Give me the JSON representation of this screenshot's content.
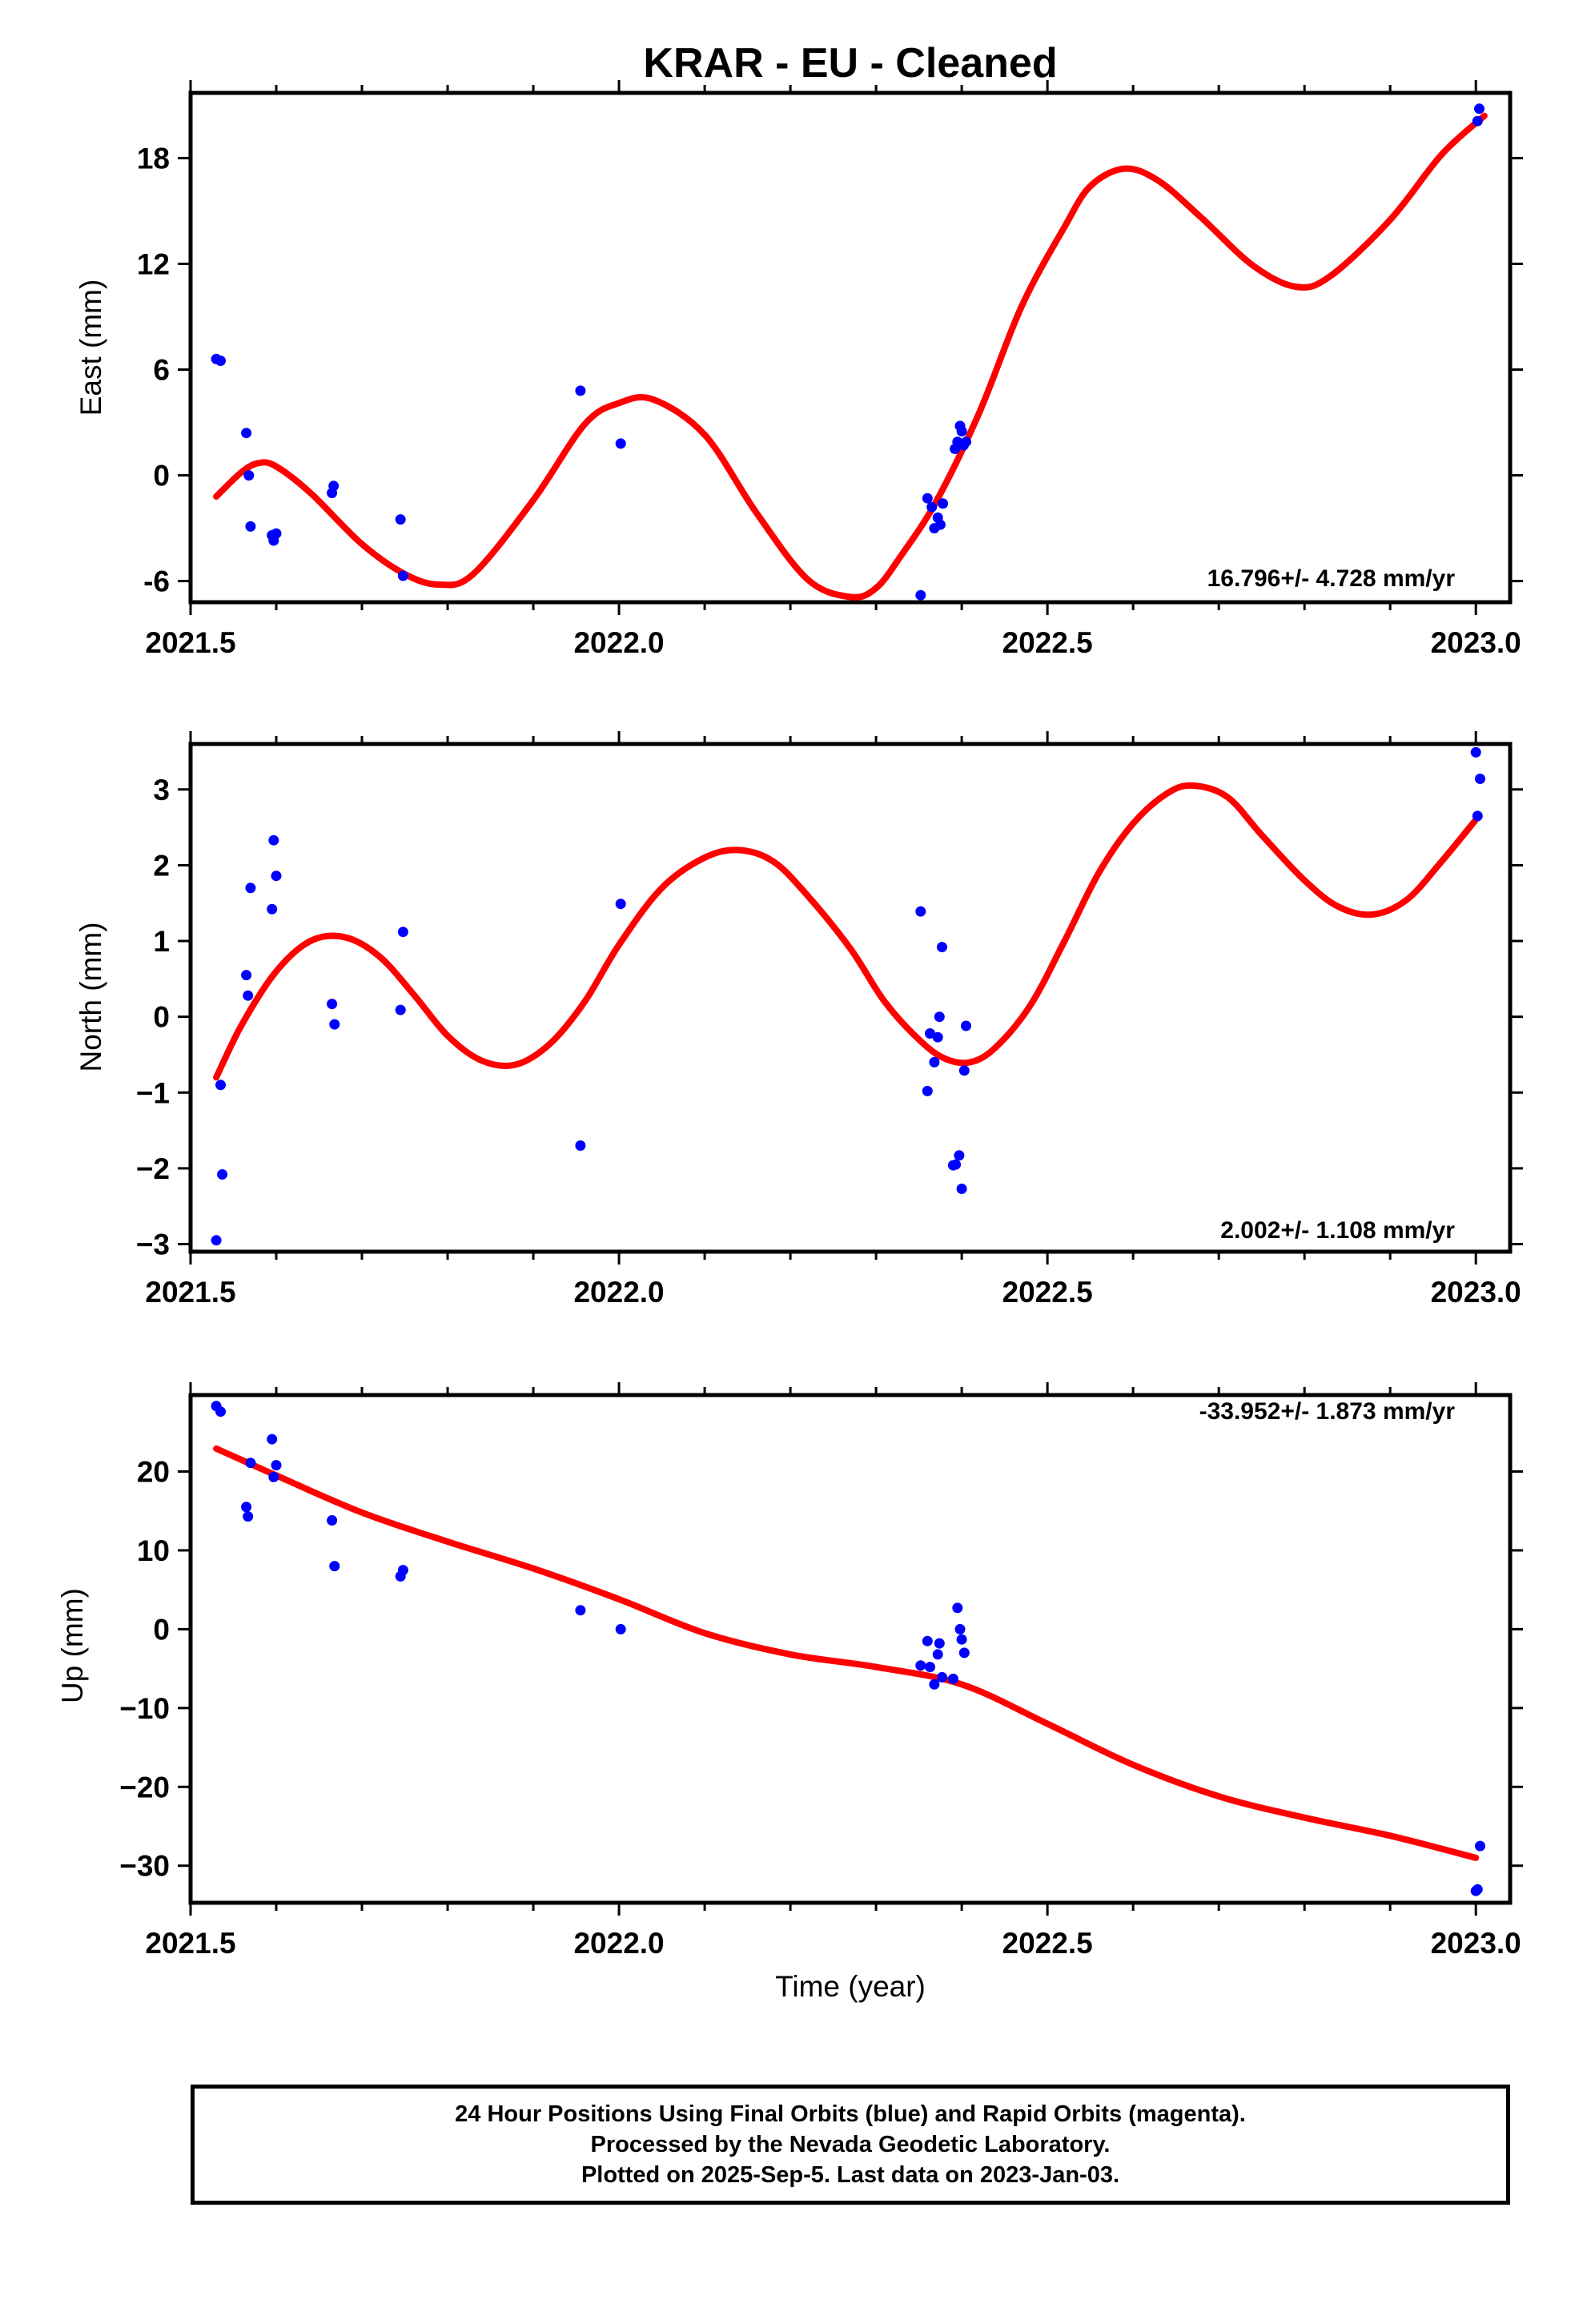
{
  "title": "KRAR  - EU - Cleaned",
  "xlabel": "Time (year)",
  "colors": {
    "final_orbits": "#0000ff",
    "fit_curve": "#ff0000",
    "frame": "#000000"
  },
  "footer": {
    "line1": "24 Hour Positions Using Final Orbits (blue) and Rapid Orbits (magenta).",
    "line2": "Processed by the Nevada Geodetic Laboratory.",
    "line3": "Plotted on 2025-Sep-5. Last data on 2023-Jan-03."
  },
  "chart_data": [
    {
      "type": "scatter",
      "ylabel": "East (mm)",
      "rate": "16.796+/- 4.728 mm/yr",
      "rate_position": "bottom-right",
      "xlim": [
        2021.5,
        2023.04
      ],
      "ylim": [
        -7.2,
        21.7
      ],
      "x_ticks": [
        "2021.5",
        "2022.0",
        "2022.5",
        "2023.0"
      ],
      "y_ticks": [
        "-6",
        "0",
        "6",
        "12",
        "18"
      ],
      "points": [
        [
          2021.53,
          6.6
        ],
        [
          2021.535,
          6.5
        ],
        [
          2021.565,
          2.4
        ],
        [
          2021.568,
          0.0
        ],
        [
          2021.57,
          -2.9
        ],
        [
          2021.595,
          -3.4
        ],
        [
          2021.597,
          -3.7
        ],
        [
          2021.6,
          -3.3
        ],
        [
          2021.665,
          -1.0
        ],
        [
          2021.667,
          -0.6
        ],
        [
          2021.745,
          -2.5
        ],
        [
          2021.748,
          -5.7
        ],
        [
          2021.955,
          4.8
        ],
        [
          2022.002,
          1.8
        ],
        [
          2022.352,
          -6.8
        ],
        [
          2022.36,
          -1.3
        ],
        [
          2022.365,
          -1.8
        ],
        [
          2022.368,
          -3.0
        ],
        [
          2022.372,
          -2.4
        ],
        [
          2022.375,
          -2.8
        ],
        [
          2022.378,
          -1.6
        ],
        [
          2022.392,
          1.5
        ],
        [
          2022.395,
          1.9
        ],
        [
          2022.398,
          2.8
        ],
        [
          2022.4,
          2.5
        ],
        [
          2022.402,
          1.7
        ],
        [
          2022.405,
          1.9
        ],
        [
          2023.002,
          20.1
        ],
        [
          2023.004,
          20.8
        ]
      ],
      "fit": [
        [
          2021.53,
          -1.2
        ],
        [
          2021.56,
          0.2
        ],
        [
          2021.58,
          0.7
        ],
        [
          2021.6,
          0.5
        ],
        [
          2021.64,
          -1.0
        ],
        [
          2021.7,
          -3.9
        ],
        [
          2021.75,
          -5.6
        ],
        [
          2021.79,
          -6.2
        ],
        [
          2021.83,
          -5.6
        ],
        [
          2021.9,
          -1.4
        ],
        [
          2021.96,
          2.9
        ],
        [
          2022.0,
          4.1
        ],
        [
          2022.04,
          4.3
        ],
        [
          2022.1,
          2.3
        ],
        [
          2022.16,
          -2.1
        ],
        [
          2022.22,
          -5.9
        ],
        [
          2022.27,
          -6.9
        ],
        [
          2022.3,
          -6.4
        ],
        [
          2022.33,
          -4.5
        ],
        [
          2022.37,
          -1.5
        ],
        [
          2022.42,
          3.5
        ],
        [
          2022.47,
          9.6
        ],
        [
          2022.52,
          14.1
        ],
        [
          2022.55,
          16.4
        ],
        [
          2022.59,
          17.4
        ],
        [
          2022.63,
          16.7
        ],
        [
          2022.68,
          14.6
        ],
        [
          2022.74,
          11.9
        ],
        [
          2022.79,
          10.7
        ],
        [
          2022.83,
          11.3
        ],
        [
          2022.9,
          14.5
        ],
        [
          2022.96,
          18.2
        ],
        [
          2023.01,
          20.4
        ]
      ]
    },
    {
      "type": "scatter",
      "ylabel": "North (mm)",
      "rate": "2.002+/- 1.108 mm/yr",
      "rate_position": "bottom-right",
      "xlim": [
        2021.5,
        2023.04
      ],
      "ylim": [
        -3.1,
        3.6
      ],
      "x_ticks": [
        "2021.5",
        "2022.0",
        "2022.5",
        "2023.0"
      ],
      "y_ticks": [
        "−3",
        "−2",
        "−1",
        "0",
        "1",
        "2",
        "3"
      ],
      "points": [
        [
          2021.53,
          -2.95
        ],
        [
          2021.535,
          -0.9
        ],
        [
          2021.537,
          -2.08
        ],
        [
          2021.565,
          0.55
        ],
        [
          2021.567,
          0.28
        ],
        [
          2021.57,
          1.7
        ],
        [
          2021.595,
          1.42
        ],
        [
          2021.597,
          2.33
        ],
        [
          2021.6,
          1.86
        ],
        [
          2021.665,
          0.17
        ],
        [
          2021.668,
          -0.1
        ],
        [
          2021.745,
          0.09
        ],
        [
          2021.748,
          1.12
        ],
        [
          2021.955,
          -1.7
        ],
        [
          2022.002,
          1.49
        ],
        [
          2022.352,
          1.39
        ],
        [
          2022.36,
          -0.98
        ],
        [
          2022.363,
          -0.22
        ],
        [
          2022.368,
          -0.6
        ],
        [
          2022.372,
          -0.27
        ],
        [
          2022.374,
          0.0
        ],
        [
          2022.377,
          0.92
        ],
        [
          2022.39,
          -1.96
        ],
        [
          2022.393,
          -1.95
        ],
        [
          2022.397,
          -1.83
        ],
        [
          2022.4,
          -2.27
        ],
        [
          2022.403,
          -0.71
        ],
        [
          2022.405,
          -0.12
        ],
        [
          2023.0,
          3.49
        ],
        [
          2023.002,
          2.65
        ],
        [
          2023.005,
          3.14
        ]
      ],
      "fit": [
        [
          2021.53,
          -0.8
        ],
        [
          2021.56,
          -0.1
        ],
        [
          2021.6,
          0.6
        ],
        [
          2021.64,
          1.0
        ],
        [
          2021.68,
          1.05
        ],
        [
          2021.72,
          0.8
        ],
        [
          2021.76,
          0.3
        ],
        [
          2021.8,
          -0.25
        ],
        [
          2021.84,
          -0.58
        ],
        [
          2021.88,
          -0.63
        ],
        [
          2021.92,
          -0.35
        ],
        [
          2021.96,
          0.2
        ],
        [
          2022.0,
          0.95
        ],
        [
          2022.05,
          1.7
        ],
        [
          2022.1,
          2.1
        ],
        [
          2022.14,
          2.2
        ],
        [
          2022.18,
          2.05
        ],
        [
          2022.22,
          1.6
        ],
        [
          2022.27,
          0.9
        ],
        [
          2022.31,
          0.2
        ],
        [
          2022.35,
          -0.3
        ],
        [
          2022.38,
          -0.55
        ],
        [
          2022.41,
          -0.6
        ],
        [
          2022.44,
          -0.4
        ],
        [
          2022.48,
          0.15
        ],
        [
          2022.52,
          1.0
        ],
        [
          2022.56,
          1.9
        ],
        [
          2022.6,
          2.55
        ],
        [
          2022.64,
          2.95
        ],
        [
          2022.67,
          3.05
        ],
        [
          2022.71,
          2.9
        ],
        [
          2022.75,
          2.4
        ],
        [
          2022.8,
          1.8
        ],
        [
          2022.84,
          1.45
        ],
        [
          2022.88,
          1.35
        ],
        [
          2022.92,
          1.55
        ],
        [
          2022.96,
          2.05
        ],
        [
          2023.0,
          2.6
        ]
      ]
    },
    {
      "type": "scatter",
      "ylabel": "Up (mm)",
      "rate": "-33.952+/- 1.873 mm/yr",
      "rate_position": "top-right",
      "xlim": [
        2021.5,
        2023.04
      ],
      "ylim": [
        -34.7,
        29.7
      ],
      "x_ticks": [
        "2021.5",
        "2022.0",
        "2022.5",
        "2023.0"
      ],
      "y_ticks": [
        "−30",
        "−20",
        "−10",
        "0",
        "10",
        "20"
      ],
      "points": [
        [
          2021.53,
          28.3
        ],
        [
          2021.535,
          27.6
        ],
        [
          2021.565,
          15.5
        ],
        [
          2021.567,
          14.3
        ],
        [
          2021.57,
          21.1
        ],
        [
          2021.595,
          24.1
        ],
        [
          2021.597,
          19.3
        ],
        [
          2021.6,
          20.8
        ],
        [
          2021.665,
          13.8
        ],
        [
          2021.668,
          8.0
        ],
        [
          2021.745,
          6.7
        ],
        [
          2021.748,
          7.5
        ],
        [
          2021.955,
          2.4
        ],
        [
          2022.002,
          0.0
        ],
        [
          2022.352,
          -4.6
        ],
        [
          2022.36,
          -1.5
        ],
        [
          2022.363,
          -4.8
        ],
        [
          2022.368,
          -7.0
        ],
        [
          2022.372,
          -3.2
        ],
        [
          2022.374,
          -1.8
        ],
        [
          2022.377,
          -6.1
        ],
        [
          2022.39,
          -6.3
        ],
        [
          2022.395,
          2.7
        ],
        [
          2022.398,
          0.0
        ],
        [
          2022.4,
          -1.3
        ],
        [
          2022.403,
          -3.0
        ],
        [
          2023.0,
          -33.2
        ],
        [
          2023.002,
          -33.0
        ],
        [
          2023.005,
          -27.5
        ]
      ],
      "fit": [
        [
          2021.53,
          22.9
        ],
        [
          2021.6,
          19.5
        ],
        [
          2021.7,
          14.8
        ],
        [
          2021.8,
          11.1
        ],
        [
          2021.9,
          7.7
        ],
        [
          2022.0,
          3.8
        ],
        [
          2022.1,
          -0.5
        ],
        [
          2022.2,
          -3.2
        ],
        [
          2022.3,
          -4.8
        ],
        [
          2022.4,
          -7.0
        ],
        [
          2022.5,
          -12.0
        ],
        [
          2022.6,
          -17.2
        ],
        [
          2022.7,
          -21.2
        ],
        [
          2022.8,
          -23.9
        ],
        [
          2022.9,
          -26.2
        ],
        [
          2023.0,
          -29.0
        ]
      ]
    }
  ]
}
